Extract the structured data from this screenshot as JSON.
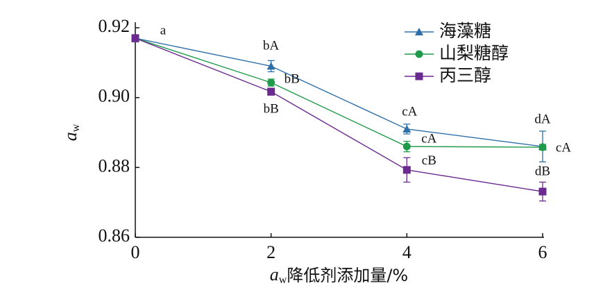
{
  "chart_data": {
    "type": "line",
    "x": [
      0,
      2,
      4,
      6
    ],
    "xlim": [
      0,
      6
    ],
    "xticks": [
      0,
      2,
      4,
      6
    ],
    "ylim": [
      0.86,
      0.92
    ],
    "yticks": [
      0.86,
      0.88,
      {
        "value": 0.9,
        "label": "0.90"
      },
      0.92
    ],
    "xlabel_parts": [
      "a",
      "w",
      "降低剂添加量/%"
    ],
    "ylabel_parts": [
      "a",
      "w"
    ],
    "legend": "upper right",
    "series": [
      {
        "name": "海藻糖",
        "color": "#2e6fa8",
        "marker": "triangle",
        "values": [
          0.917,
          0.909,
          0.891,
          0.886
        ],
        "errors": [
          0.001,
          0.0016,
          0.0014,
          0.0044
        ],
        "point_labels": [
          "a",
          "bA",
          "cA",
          "dA"
        ]
      },
      {
        "name": "山梨糖醇",
        "color": "#1f9a4a",
        "marker": "circle",
        "values": [
          0.917,
          0.9043,
          0.886,
          0.8858
        ],
        "errors": [
          0.001,
          0.001,
          0.0015,
          0.0008
        ],
        "point_labels": [
          null,
          "bB",
          "cA",
          "cA"
        ]
      },
      {
        "name": "丙三醇",
        "color": "#6a2a8f",
        "marker": "square",
        "values": [
          0.917,
          0.9017,
          0.8793,
          0.8731
        ],
        "errors": [
          0.001,
          0.001,
          0.0035,
          0.0027
        ],
        "point_labels": [
          null,
          "bB",
          "cB",
          "dB"
        ]
      }
    ]
  }
}
